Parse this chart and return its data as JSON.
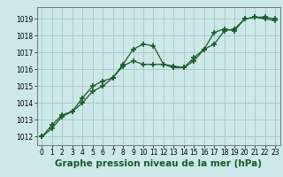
{
  "xlabel": "Graphe pression niveau de la mer (hPa)",
  "ylabel": "",
  "bg_color": "#cce8e8",
  "grid_color": "#aacccc",
  "line_color": "#1a5c2a",
  "marker": "+",
  "marker_size": 4,
  "marker_lw": 1.2,
  "ylim": [
    1011.5,
    1019.7
  ],
  "xlim": [
    -0.5,
    23.5
  ],
  "yticks": [
    1012,
    1013,
    1014,
    1015,
    1016,
    1017,
    1018,
    1019
  ],
  "xticks": [
    0,
    1,
    2,
    3,
    4,
    5,
    6,
    7,
    8,
    9,
    10,
    11,
    12,
    13,
    14,
    15,
    16,
    17,
    18,
    19,
    20,
    21,
    22,
    23
  ],
  "series1_x": [
    0,
    1,
    2,
    3,
    4,
    5,
    6,
    7,
    8,
    9,
    10,
    11,
    12,
    13,
    14,
    15,
    16,
    17,
    18,
    19,
    20,
    21,
    22,
    23
  ],
  "series1_y": [
    1012.0,
    1012.5,
    1013.2,
    1013.5,
    1014.3,
    1015.0,
    1015.3,
    1015.5,
    1016.3,
    1017.2,
    1017.5,
    1017.4,
    1016.3,
    1016.2,
    1016.1,
    1016.5,
    1017.2,
    1018.2,
    1018.4,
    1018.3,
    1019.0,
    1019.1,
    1019.1,
    1019.0
  ],
  "series2_x": [
    0,
    1,
    2,
    3,
    4,
    5,
    6,
    7,
    8,
    9,
    10,
    11,
    12,
    13,
    14,
    15,
    16,
    17,
    18,
    19,
    20,
    21,
    22,
    23
  ],
  "series2_y": [
    1012.0,
    1012.7,
    1013.3,
    1013.5,
    1014.0,
    1014.7,
    1015.0,
    1015.5,
    1016.2,
    1016.5,
    1016.3,
    1016.3,
    1016.3,
    1016.1,
    1016.1,
    1016.7,
    1017.2,
    1017.5,
    1018.3,
    1018.4,
    1019.0,
    1019.1,
    1019.0,
    1018.9
  ],
  "tick_fontsize": 5.5,
  "xlabel_fontsize": 7.5,
  "xlabel_bold": true,
  "linewidth": 0.9
}
